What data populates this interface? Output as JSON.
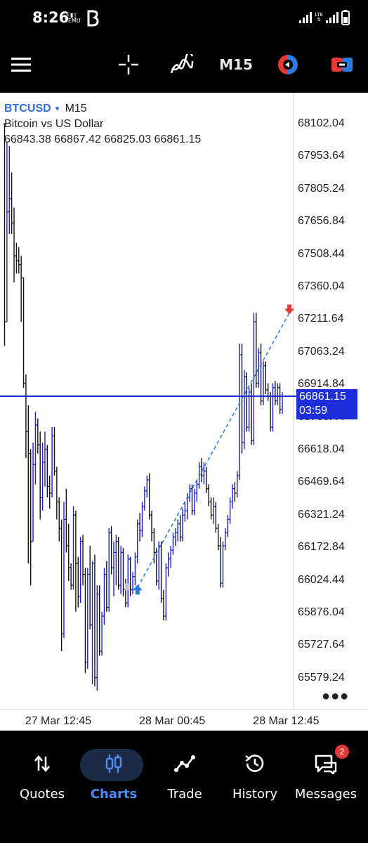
{
  "status_bar": {
    "time": "8:26",
    "indicators": [
      "SIM-icon",
      "TEMU"
    ],
    "network": "LTE"
  },
  "toolbar": {
    "menu_icon": "hamburger-menu-icon",
    "crosshair_icon": "crosshair-icon",
    "indicators_icon": "indicators-icon",
    "period": "M15",
    "one_click_icon": "one-click-trading-icon",
    "trade_icon": "quick-trade-icon"
  },
  "chart": {
    "symbol": "BTCUSD",
    "timeframe": "M15",
    "description": "Bitcoin vs US Dollar",
    "ohlc": "66843.38 66867.42 66825.03 66861.15",
    "current_price": "66861.15",
    "countdown": "03:59",
    "price_ticks": [
      "68102.04",
      "67953.64",
      "67805.24",
      "67656.84",
      "67508.44",
      "67360.04",
      "67211.64",
      "67063.24",
      "66914.84",
      "66766.44",
      "66618.04",
      "66469.64",
      "66321.24",
      "66172.84",
      "66024.44",
      "65876.04",
      "65727.64",
      "65579.24"
    ],
    "time_ticks": [
      "27 Mar 12:45",
      "28 Mar 00:45",
      "28 Mar 12:45"
    ],
    "colors": {
      "up": "#1c1ccf",
      "down": "#111111",
      "price_line": "#1d2ed8",
      "trend_line": "#2a7de1",
      "sell_arrow": "#e53935",
      "buy_arrow": "#2a7de1"
    }
  },
  "chart_data": {
    "type": "ohlc",
    "symbol": "BTCUSD",
    "timeframe": "M15",
    "y_ticks": [
      68102.04,
      67953.64,
      67805.24,
      67656.84,
      67508.44,
      67360.04,
      67211.64,
      67063.24,
      66914.84,
      66766.44,
      66618.04,
      66469.64,
      66321.24,
      66172.84,
      66024.44,
      65876.04,
      65727.64,
      65579.24
    ],
    "ylim": [
      65480,
      68170
    ],
    "x_ticks": [
      "27 Mar 12:45",
      "28 Mar 00:45",
      "28 Mar 12:45"
    ],
    "x_tick_bars": [
      14,
      62,
      110
    ],
    "last_price": 66861.15,
    "trade": {
      "buy": {
        "bar": 56,
        "price": 65990
      },
      "sell": {
        "bar": 120,
        "price": 67240
      }
    },
    "bars": [
      [
        68102,
        68102,
        67090,
        67200
      ],
      [
        67200,
        68020,
        67200,
        67700
      ],
      [
        67700,
        68000,
        67600,
        67760
      ],
      [
        67760,
        67880,
        67600,
        67650
      ],
      [
        67650,
        67720,
        67380,
        67500
      ],
      [
        67500,
        67560,
        67420,
        67480
      ],
      [
        67480,
        67540,
        67420,
        67460
      ],
      [
        67460,
        67500,
        67200,
        67400
      ],
      [
        67400,
        67400,
        66900,
        66920
      ],
      [
        66920,
        66960,
        66580,
        66700
      ],
      [
        66700,
        66820,
        66100,
        66600
      ],
      [
        66600,
        66620,
        66000,
        66200
      ],
      [
        66200,
        66650,
        66200,
        66550
      ],
      [
        66550,
        66790,
        66460,
        66730
      ],
      [
        66730,
        66760,
        66600,
        66640
      ],
      [
        66640,
        66700,
        66300,
        66400
      ],
      [
        66400,
        66650,
        66340,
        66560
      ],
      [
        66560,
        66700,
        66450,
        66620
      ],
      [
        66620,
        66640,
        66400,
        66450
      ],
      [
        66450,
        66500,
        66350,
        66420
      ],
      [
        66420,
        66720,
        66400,
        66680
      ],
      [
        66680,
        66720,
        66500,
        66520
      ],
      [
        66520,
        66540,
        66300,
        66380
      ],
      [
        66380,
        66400,
        66200,
        66260
      ],
      [
        66260,
        66300,
        65700,
        65780
      ],
      [
        65780,
        66380,
        65760,
        66300
      ],
      [
        66300,
        66440,
        66150,
        66180
      ],
      [
        66180,
        66280,
        66020,
        66080
      ],
      [
        66080,
        66100,
        65980,
        66000
      ],
      [
        66000,
        66360,
        65980,
        66320
      ],
      [
        66320,
        66340,
        65880,
        66100
      ],
      [
        66100,
        66130,
        65900,
        65950
      ],
      [
        65950,
        66220,
        65920,
        66200
      ],
      [
        66200,
        66230,
        66000,
        66050
      ],
      [
        66050,
        66080,
        65600,
        65650
      ],
      [
        65650,
        66080,
        65620,
        66050
      ],
      [
        66050,
        66180,
        65800,
        65820
      ],
      [
        65820,
        66110,
        65550,
        66100
      ],
      [
        66100,
        66140,
        65540,
        65580
      ],
      [
        65580,
        66000,
        65520,
        65960
      ],
      [
        65960,
        66000,
        65680,
        65700
      ],
      [
        65700,
        65880,
        65680,
        65860
      ],
      [
        65860,
        66080,
        65820,
        66050
      ],
      [
        66050,
        66110,
        65880,
        65900
      ],
      [
        65900,
        66260,
        65880,
        66240
      ],
      [
        66240,
        66270,
        66050,
        66080
      ],
      [
        66080,
        66200,
        65950,
        66150
      ],
      [
        66150,
        66230,
        66000,
        66200
      ],
      [
        66200,
        66220,
        65980,
        66000
      ],
      [
        66000,
        66180,
        65960,
        66150
      ],
      [
        66150,
        66170,
        65950,
        65980
      ],
      [
        65980,
        66030,
        65900,
        65920
      ],
      [
        65920,
        66140,
        65900,
        66120
      ],
      [
        66120,
        66130,
        65950,
        65980
      ],
      [
        65980,
        66060,
        65960,
        66040
      ],
      [
        66040,
        66150,
        66000,
        66130
      ],
      [
        66130,
        66300,
        66100,
        66280
      ],
      [
        66280,
        66330,
        66200,
        66250
      ],
      [
        66250,
        66380,
        66220,
        66360
      ],
      [
        66360,
        66450,
        66340,
        66430
      ],
      [
        66430,
        66500,
        66400,
        66480
      ],
      [
        66480,
        66510,
        66300,
        66320
      ],
      [
        66320,
        66340,
        66200,
        66240
      ],
      [
        66240,
        66260,
        66100,
        66150
      ],
      [
        66150,
        66170,
        66000,
        66020
      ],
      [
        66020,
        66200,
        65980,
        66180
      ],
      [
        66180,
        66200,
        65920,
        65940
      ],
      [
        65940,
        65980,
        65840,
        65860
      ],
      [
        65860,
        66100,
        65840,
        66080
      ],
      [
        66080,
        66150,
        66040,
        66120
      ],
      [
        66120,
        66180,
        66080,
        66160
      ],
      [
        66160,
        66240,
        66140,
        66220
      ],
      [
        66220,
        66260,
        66180,
        66240
      ],
      [
        66240,
        66300,
        66200,
        66280
      ],
      [
        66280,
        66320,
        66200,
        66220
      ],
      [
        66220,
        66350,
        66200,
        66320
      ],
      [
        66320,
        66380,
        66290,
        66340
      ],
      [
        66340,
        66420,
        66300,
        66400
      ],
      [
        66400,
        66460,
        66380,
        66440
      ],
      [
        66440,
        66460,
        66320,
        66340
      ],
      [
        66340,
        66440,
        66320,
        66420
      ],
      [
        66420,
        66480,
        66380,
        66460
      ],
      [
        66460,
        66560,
        66440,
        66540
      ],
      [
        66540,
        66580,
        66470,
        66500
      ],
      [
        66500,
        66560,
        66460,
        66520
      ],
      [
        66520,
        66540,
        66420,
        66440
      ],
      [
        66440,
        66460,
        66360,
        66380
      ],
      [
        66380,
        66400,
        66300,
        66320
      ],
      [
        66320,
        66400,
        66280,
        66360
      ],
      [
        66360,
        66380,
        66240,
        66260
      ],
      [
        66260,
        66280,
        66160,
        66180
      ],
      [
        66180,
        66220,
        65990,
        66010
      ],
      [
        66010,
        66200,
        65990,
        66180
      ],
      [
        66180,
        66260,
        66160,
        66240
      ],
      [
        66240,
        66320,
        66220,
        66300
      ],
      [
        66300,
        66400,
        66280,
        66380
      ],
      [
        66380,
        66460,
        66350,
        66440
      ],
      [
        66440,
        66470,
        66380,
        66420
      ],
      [
        66420,
        66520,
        66400,
        66500
      ],
      [
        66500,
        67100,
        66480,
        67050
      ],
      [
        67050,
        67100,
        66600,
        66650
      ],
      [
        66650,
        66980,
        66620,
        66950
      ],
      [
        66950,
        66970,
        66700,
        66720
      ],
      [
        66720,
        66900,
        66700,
        66880
      ],
      [
        66880,
        66920,
        66640,
        66660
      ],
      [
        66660,
        67240,
        66640,
        67200
      ],
      [
        67200,
        67240,
        66900,
        66920
      ],
      [
        66920,
        67080,
        66900,
        67060
      ],
      [
        67060,
        67100,
        66820,
        66840
      ],
      [
        66840,
        67020,
        66820,
        67000
      ],
      [
        67000,
        67020,
        66870,
        66890
      ],
      [
        66890,
        66920,
        66840,
        66860
      ],
      [
        66860,
        66880,
        66700,
        66720
      ],
      [
        66720,
        66920,
        66700,
        66900
      ],
      [
        66900,
        66930,
        66820,
        66840
      ],
      [
        66840,
        66920,
        66820,
        66900
      ],
      [
        66900,
        66920,
        66780,
        66800
      ],
      [
        66800,
        66880,
        66780,
        66860
      ]
    ]
  },
  "bottom_nav": {
    "items": [
      {
        "label": "Quotes",
        "icon": "quotes-arrows-icon"
      },
      {
        "label": "Charts",
        "icon": "charts-candles-icon"
      },
      {
        "label": "Trade",
        "icon": "trade-line-icon"
      },
      {
        "label": "History",
        "icon": "history-clock-icon"
      },
      {
        "label": "Messages",
        "icon": "messages-chat-icon",
        "badge": "2"
      }
    ],
    "active_index": 1
  }
}
